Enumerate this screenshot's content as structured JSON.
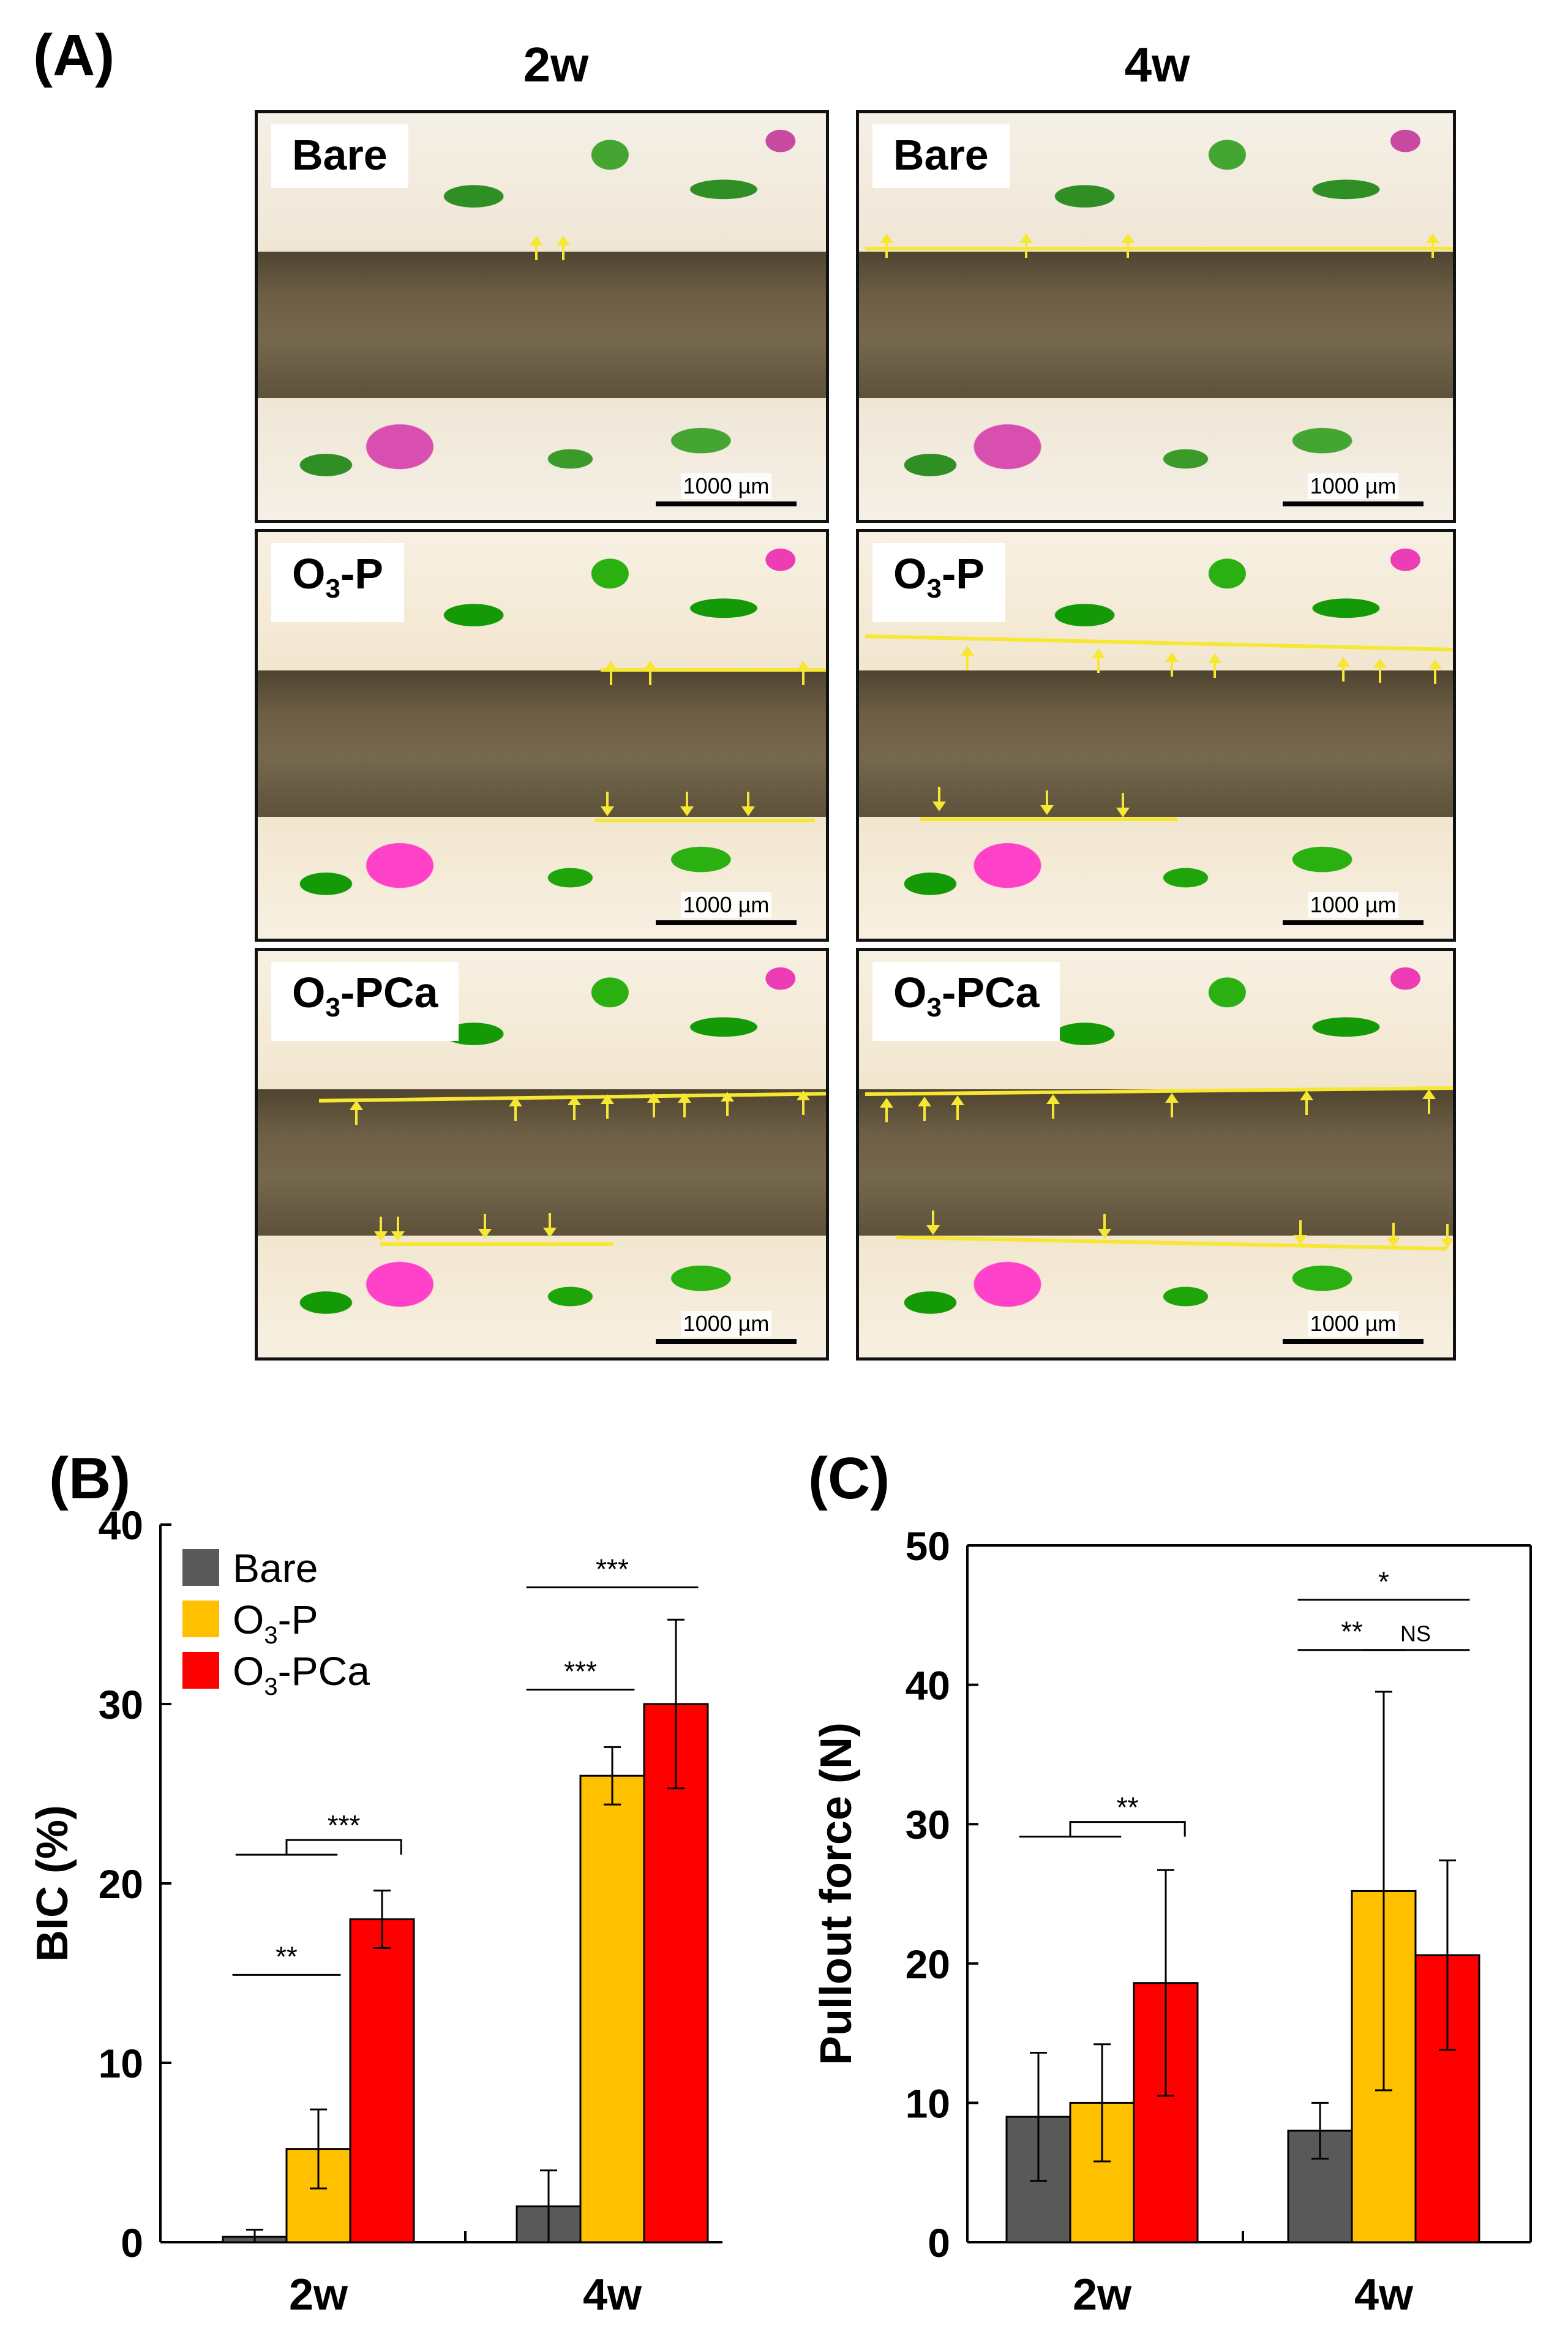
{
  "panelA": {
    "letter": "(A)",
    "col_titles": [
      "2w",
      "4w"
    ],
    "row_labels": {
      "bare": "Bare",
      "o3p_main": "O",
      "o3p_sub": "3",
      "o3p_rest": "-P",
      "o3pca_main": "O",
      "o3pca_sub": "3",
      "o3pca_rest": "-PCa"
    },
    "scale_text": "1000 µm"
  },
  "colors": {
    "bare": "#595959",
    "o3p": "#ffc000",
    "o3pca": "#ff0000",
    "arrow": "#f6e733"
  },
  "chart_data": [
    {
      "panel": "(B)",
      "type": "bar",
      "categories": [
        "2w",
        "4w"
      ],
      "ylabel": "BIC (%)",
      "ylim": [
        0,
        40
      ],
      "yticks": [
        0,
        10,
        20,
        30,
        40
      ],
      "legend_position": "top-left",
      "series": [
        {
          "name": "Bare",
          "values": [
            0.3,
            2.0
          ],
          "errors": [
            0.4,
            2.0
          ],
          "color": "#595959"
        },
        {
          "name": "O3-P",
          "values": [
            5.2,
            26.0
          ],
          "errors": [
            2.2,
            1.6
          ],
          "color": "#ffc000"
        },
        {
          "name": "O3-PCa",
          "values": [
            18.0,
            30.0
          ],
          "errors": [
            1.6,
            4.7
          ],
          "color": "#ff0000"
        }
      ],
      "legend": [
        {
          "main": "Bare",
          "sub": "",
          "rest": ""
        },
        {
          "main": "O",
          "sub": "3",
          "rest": "-P"
        },
        {
          "main": "O",
          "sub": "3",
          "rest": "-PCa"
        }
      ],
      "significance": [
        {
          "group": 0,
          "from": 0,
          "to": 1,
          "y": 14.9,
          "label": "**"
        },
        {
          "group": 0,
          "from": "0-1",
          "to": 2,
          "y": 21.6,
          "label": "***"
        },
        {
          "group": 1,
          "from": 0,
          "to": 1,
          "y": 30.8,
          "label": "***"
        },
        {
          "group": 1,
          "from": 0,
          "to": 2,
          "y": 36.5,
          "label": "***"
        }
      ]
    },
    {
      "panel": "(C)",
      "type": "bar",
      "categories": [
        "2w",
        "4w"
      ],
      "ylabel": "Pullout force (N)",
      "ylim": [
        0,
        50
      ],
      "yticks": [
        0,
        10,
        20,
        30,
        40,
        50
      ],
      "series": [
        {
          "name": "Bare",
          "values": [
            9.0,
            8.0
          ],
          "errors": [
            4.6,
            2.0
          ],
          "color": "#595959"
        },
        {
          "name": "O3-P",
          "values": [
            10.0,
            25.2
          ],
          "errors": [
            4.2,
            14.3
          ],
          "color": "#ffc000"
        },
        {
          "name": "O3-PCa",
          "values": [
            18.6,
            20.6
          ],
          "errors": [
            8.1,
            6.8
          ],
          "color": "#ff0000"
        }
      ],
      "significance": [
        {
          "group": 0,
          "from": "0-1",
          "to": 2,
          "y": 29.1,
          "label": "**"
        },
        {
          "group": 1,
          "from": 0,
          "to": 1,
          "y": 42.5,
          "label": "**"
        },
        {
          "group": 1,
          "from": 1,
          "to": 2,
          "y": 42.5,
          "label": "NS"
        },
        {
          "group": 1,
          "from": 0,
          "to": 2,
          "y": 46.1,
          "label": "*"
        }
      ]
    }
  ]
}
